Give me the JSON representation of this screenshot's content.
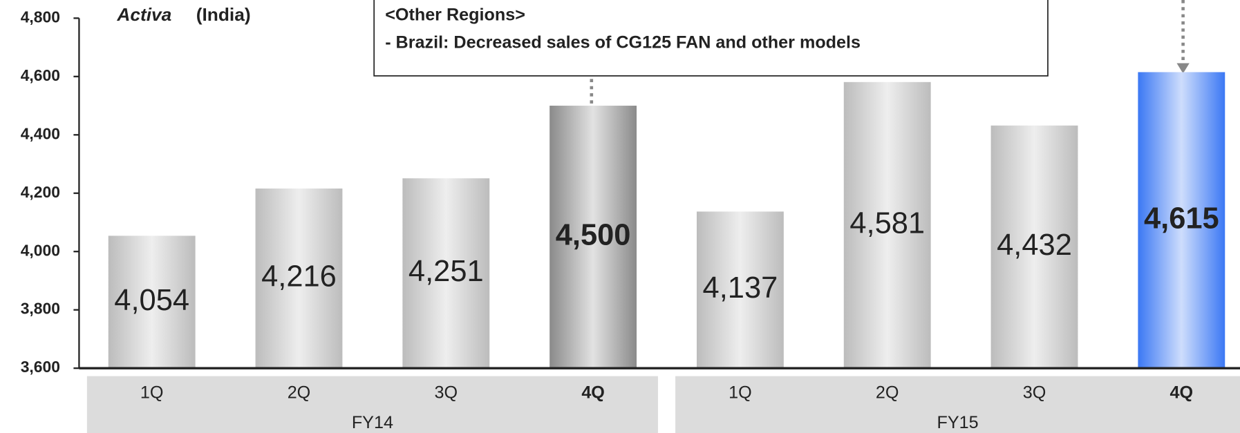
{
  "chart_data": {
    "type": "bar",
    "title_italic": "Activa",
    "title": "(India)",
    "annotation": [
      "<Other Regions>",
      "- Brazil: Decreased sales of CG125 FAN and other models"
    ],
    "categories": [
      "1Q",
      "2Q",
      "3Q",
      "4Q",
      "1Q",
      "2Q",
      "3Q",
      "4Q"
    ],
    "groups": [
      {
        "name": "FY14",
        "count": 4
      },
      {
        "name": "FY15",
        "count": 4
      }
    ],
    "values": [
      4054,
      4216,
      4251,
      4500,
      4137,
      4581,
      4432,
      4615
    ],
    "value_labels": [
      "4,054",
      "4,216",
      "4,251",
      "4,500",
      "4,137",
      "4,581",
      "4,432",
      "4,615"
    ],
    "bold": [
      false,
      false,
      false,
      true,
      false,
      false,
      false,
      true
    ],
    "colors": [
      "#bcbcbc",
      "#bcbcbc",
      "#bcbcbc",
      "#8a8a8a",
      "#bcbcbc",
      "#bcbcbc",
      "#bcbcbc",
      "#3b78f4"
    ],
    "ylim": [
      3600,
      4800
    ],
    "yticks": [
      {
        "value": 3600,
        "label": "3,600"
      },
      {
        "value": 3800,
        "label": "3,800"
      },
      {
        "value": 4000,
        "label": "4,000"
      },
      {
        "value": 4200,
        "label": "4,200"
      },
      {
        "value": 4400,
        "label": "4,400"
      },
      {
        "value": 4600,
        "label": "4,600"
      },
      {
        "value": 4800,
        "label": "4,800"
      }
    ]
  }
}
